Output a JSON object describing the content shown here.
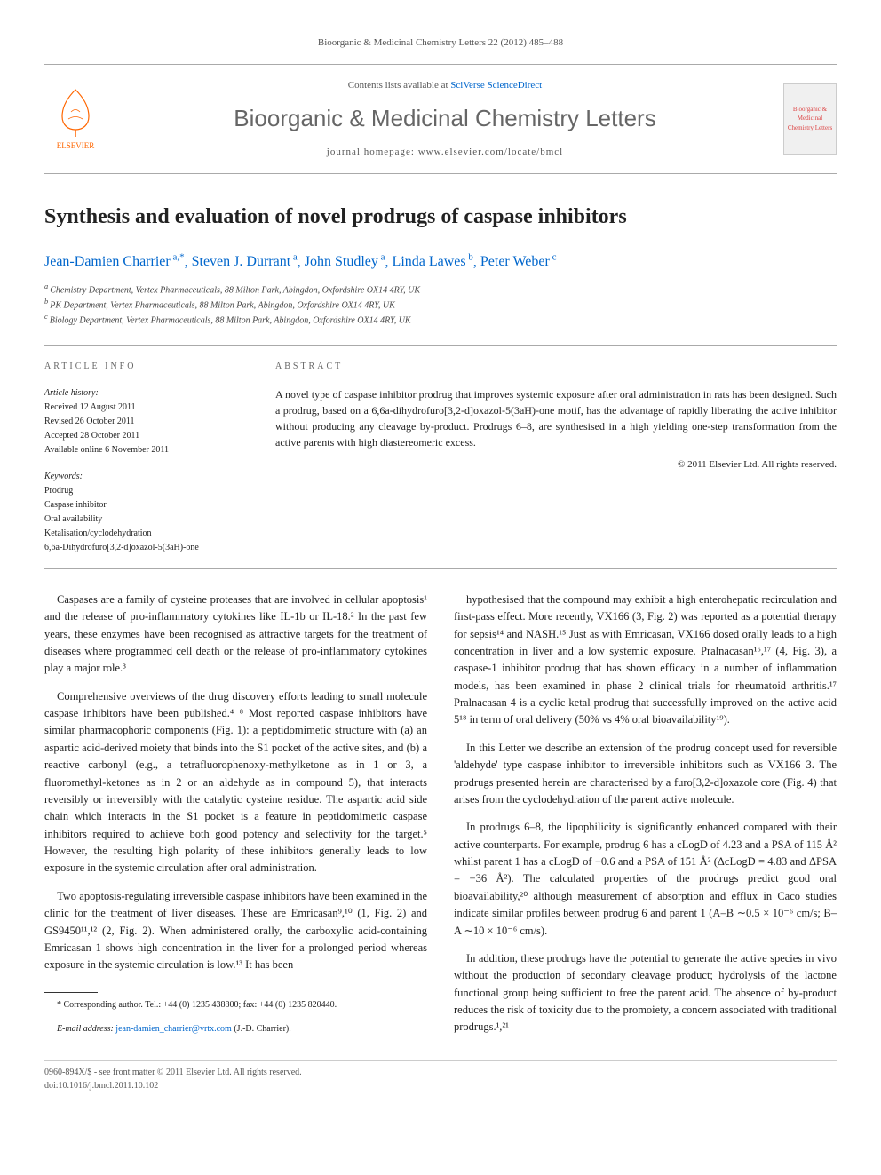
{
  "citation": "Bioorganic & Medicinal Chemistry Letters 22 (2012) 485–488",
  "header": {
    "contents_prefix": "Contents lists available at ",
    "contents_link": "SciVerse ScienceDirect",
    "journal": "Bioorganic & Medicinal Chemistry Letters",
    "homepage": "journal homepage: www.elsevier.com/locate/bmcl",
    "publisher": "ELSEVIER",
    "thumb_text": "Bioorganic & Medicinal Chemistry Letters"
  },
  "article": {
    "title": "Synthesis and evaluation of novel prodrugs of caspase inhibitors",
    "authors_html": "Jean-Damien Charrier|a,*|, Steven J. Durrant|a|, John Studley|a|, Linda Lawes|b|, Peter Weber|c|",
    "authors": [
      {
        "name": "Jean-Damien Charrier",
        "sup": "a,*"
      },
      {
        "name": "Steven J. Durrant",
        "sup": "a"
      },
      {
        "name": "John Studley",
        "sup": "a"
      },
      {
        "name": "Linda Lawes",
        "sup": "b"
      },
      {
        "name": "Peter Weber",
        "sup": "c"
      }
    ],
    "affiliations": [
      {
        "sup": "a",
        "text": "Chemistry Department, Vertex Pharmaceuticals, 88 Milton Park, Abingdon, Oxfordshire OX14 4RY, UK"
      },
      {
        "sup": "b",
        "text": "PK Department, Vertex Pharmaceuticals, 88 Milton Park, Abingdon, Oxfordshire OX14 4RY, UK"
      },
      {
        "sup": "c",
        "text": "Biology Department, Vertex Pharmaceuticals, 88 Milton Park, Abingdon, Oxfordshire OX14 4RY, UK"
      }
    ]
  },
  "info": {
    "article_info_heading": "ARTICLE INFO",
    "abstract_heading": "ABSTRACT",
    "history_label": "Article history:",
    "history": [
      "Received 12 August 2011",
      "Revised 26 October 2011",
      "Accepted 28 October 2011",
      "Available online 6 November 2011"
    ],
    "keywords_label": "Keywords:",
    "keywords": [
      "Prodrug",
      "Caspase inhibitor",
      "Oral availability",
      "Ketalisation/cyclodehydration",
      "6,6a-Dihydrofuro[3,2-d]oxazol-5(3aH)-one"
    ],
    "abstract": "A novel type of caspase inhibitor prodrug that improves systemic exposure after oral administration in rats has been designed. Such a prodrug, based on a 6,6a-dihydrofuro[3,2-d]oxazol-5(3aH)-one motif, has the advantage of rapidly liberating the active inhibitor without producing any cleavage by-product. Prodrugs 6–8, are synthesised in a high yielding one-step transformation from the active parents with high diastereomeric excess.",
    "copyright": "© 2011 Elsevier Ltd. All rights reserved."
  },
  "body": {
    "p1": "Caspases are a family of cysteine proteases that are involved in cellular apoptosis¹ and the release of pro-inflammatory cytokines like IL-1b or IL-18.² In the past few years, these enzymes have been recognised as attractive targets for the treatment of diseases where programmed cell death or the release of pro-inflammatory cytokines play a major role.³",
    "p2": "Comprehensive overviews of the drug discovery efforts leading to small molecule caspase inhibitors have been published.⁴⁻⁸ Most reported caspase inhibitors have similar pharmacophoric components (Fig. 1): a peptidomimetic structure with (a) an aspartic acid-derived moiety that binds into the S1 pocket of the active sites, and (b) a reactive carbonyl (e.g., a tetrafluorophenoxy-methylketone as in 1 or 3, a fluoromethyl-ketones as in 2 or an aldehyde as in compound 5), that interacts reversibly or irreversibly with the catalytic cysteine residue. The aspartic acid side chain which interacts in the S1 pocket is a feature in peptidomimetic caspase inhibitors required to achieve both good potency and selectivity for the target.⁵ However, the resulting high polarity of these inhibitors generally leads to low exposure in the systemic circulation after oral administration.",
    "p3": "Two apoptosis-regulating irreversible caspase inhibitors have been examined in the clinic for the treatment of liver diseases. These are Emricasan⁹,¹⁰ (1, Fig. 2) and GS9450¹¹,¹² (2, Fig. 2). When administered orally, the carboxylic acid-containing Emricasan 1 shows high concentration in the liver for a prolonged period whereas exposure in the systemic circulation is low.¹³ It has been",
    "p4": "hypothesised that the compound may exhibit a high enterohepatic recirculation and first-pass effect. More recently, VX166 (3, Fig. 2) was reported as a potential therapy for sepsis¹⁴ and NASH.¹⁵ Just as with Emricasan, VX166 dosed orally leads to a high concentration in liver and a low systemic exposure. Pralnacasan¹⁶,¹⁷ (4, Fig. 3), a caspase-1 inhibitor prodrug that has shown efficacy in a number of inflammation models, has been examined in phase 2 clinical trials for rheumatoid arthritis.¹⁷ Pralnacasan 4 is a cyclic ketal prodrug that successfully improved on the active acid 5¹⁸ in term of oral delivery (50% vs 4% oral bioavailability¹⁹).",
    "p5": "In this Letter we describe an extension of the prodrug concept used for reversible 'aldehyde' type caspase inhibitor to irreversible inhibitors such as VX166 3. The prodrugs presented herein are characterised by a furo[3,2-d]oxazole core (Fig. 4) that arises from the cyclodehydration of the parent active molecule.",
    "p6": "In prodrugs 6–8, the lipophilicity is significantly enhanced compared with their active counterparts. For example, prodrug 6 has a cLogD of 4.23 and a PSA of 115 Å² whilst parent 1 has a cLogD of −0.6 and a PSA of 151 Å² (ΔcLogD = 4.83 and ΔPSA = −36 Å²). The calculated properties of the prodrugs predict good oral bioavailability,²⁰ although measurement of absorption and efflux in Caco studies indicate similar profiles between prodrug 6 and parent 1 (A–B ∼0.5 × 10⁻⁶ cm/s; B–A ∼10 × 10⁻⁶ cm/s).",
    "p7": "In addition, these prodrugs have the potential to generate the active species in vivo without the production of secondary cleavage product; hydrolysis of the lactone functional group being sufficient to free the parent acid. The absence of by-product reduces the risk of toxicity due to the promoiety, a concern associated with traditional prodrugs.¹,²¹"
  },
  "footnotes": {
    "corresponding": "* Corresponding author. Tel.: +44 (0) 1235 438800; fax: +44 (0) 1235 820440.",
    "email_label": "E-mail address:",
    "email": "jean-damien_charrier@vrtx.com",
    "email_suffix": " (J.-D. Charrier).",
    "bottom1": "0960-894X/$ - see front matter © 2011 Elsevier Ltd. All rights reserved.",
    "bottom2": "doi:10.1016/j.bmcl.2011.10.102"
  },
  "colors": {
    "link": "#0066cc",
    "elsevier": "#f60",
    "text": "#222",
    "muted": "#555",
    "rule": "#aaa"
  }
}
